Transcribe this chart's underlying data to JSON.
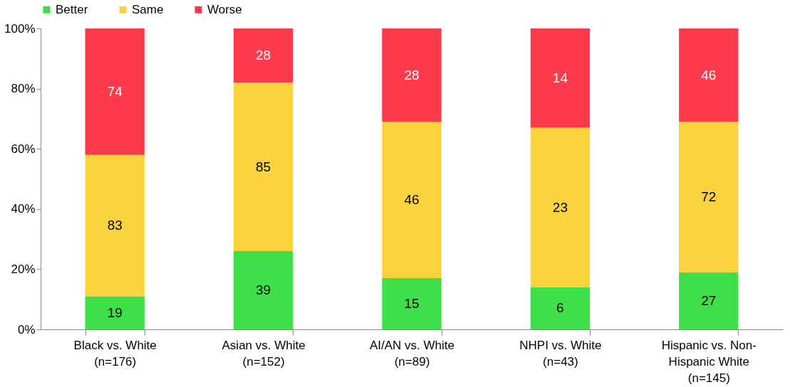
{
  "chart_data": {
    "type": "bar",
    "stacked": true,
    "categories": [
      "Black vs. White\n(n=176)",
      "Asian vs. White\n(n=152)",
      "AI/AN vs. White\n(n=89)",
      "NHPI vs. White\n(n=43)",
      "Hispanic vs. Non-\nHispanic White\n(n=145)"
    ],
    "series": [
      {
        "name": "Better",
        "color": "#3ee04a",
        "values": [
          11,
          26,
          17,
          14,
          19
        ]
      },
      {
        "name": "Same",
        "color": "#f9d23c",
        "values": [
          47,
          56,
          52,
          53,
          50
        ]
      },
      {
        "name": "Worse",
        "color": "#fc3a4b",
        "values": [
          42,
          18,
          31,
          33,
          31
        ]
      }
    ],
    "annotations": [
      "19",
      "83",
      "74",
      "39",
      "85",
      "28",
      "15",
      "46",
      "28",
      "6",
      "23",
      "14",
      "27",
      "72",
      "46"
    ],
    "ylim": [
      0,
      100
    ],
    "yticks": [
      {
        "value": 0,
        "label": "0%"
      },
      {
        "value": 20,
        "label": "20%"
      },
      {
        "value": 40,
        "label": "40%"
      },
      {
        "value": 60,
        "label": "60%"
      },
      {
        "value": 80,
        "label": "80%"
      },
      {
        "value": 100,
        "label": "100%"
      }
    ],
    "grid": false,
    "legend": "top"
  }
}
